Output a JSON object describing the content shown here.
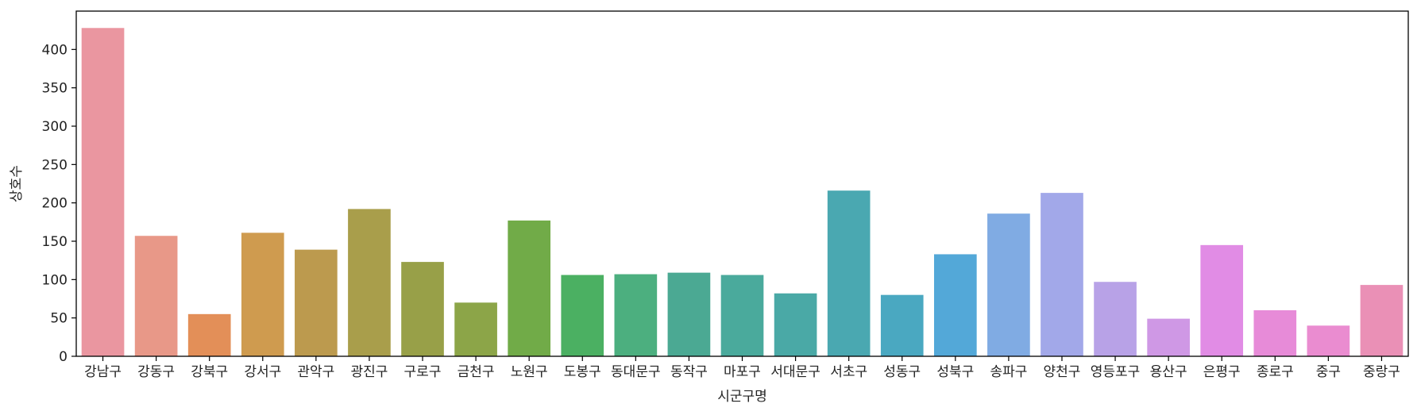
{
  "chart_data": {
    "type": "bar",
    "xlabel": "시군구명",
    "ylabel": "상호수",
    "ylim": [
      0,
      450
    ],
    "yticks": [
      0,
      50,
      100,
      150,
      200,
      250,
      300,
      350,
      400
    ],
    "grid": false,
    "categories": [
      "강남구",
      "강동구",
      "강북구",
      "강서구",
      "관악구",
      "광진구",
      "구로구",
      "금천구",
      "노원구",
      "도봉구",
      "동대문구",
      "동작구",
      "마포구",
      "서대문구",
      "서초구",
      "성동구",
      "성북구",
      "송파구",
      "양천구",
      "영등포구",
      "용산구",
      "은평구",
      "종로구",
      "중구",
      "중랑구"
    ],
    "values": [
      428,
      157,
      55,
      161,
      139,
      192,
      123,
      70,
      177,
      106,
      107,
      109,
      106,
      82,
      216,
      80,
      133,
      186,
      213,
      97,
      49,
      145,
      60,
      40,
      93
    ],
    "colors": [
      "#ea96a0",
      "#e89888",
      "#e38f58",
      "#cf9b4f",
      "#bc9a4e",
      "#a99e4b",
      "#98a048",
      "#8ca548",
      "#71ab48",
      "#4bb062",
      "#4caf7f",
      "#4ba993",
      "#4aaa9c",
      "#4aa9a6",
      "#4aa8b1",
      "#4aa8c1",
      "#53a8d8",
      "#80abe3",
      "#a2a8e9",
      "#b8a2e7",
      "#cf98e5",
      "#e18ce5",
      "#e78bd8",
      "#ea8cd0",
      "#ea90b6"
    ]
  }
}
